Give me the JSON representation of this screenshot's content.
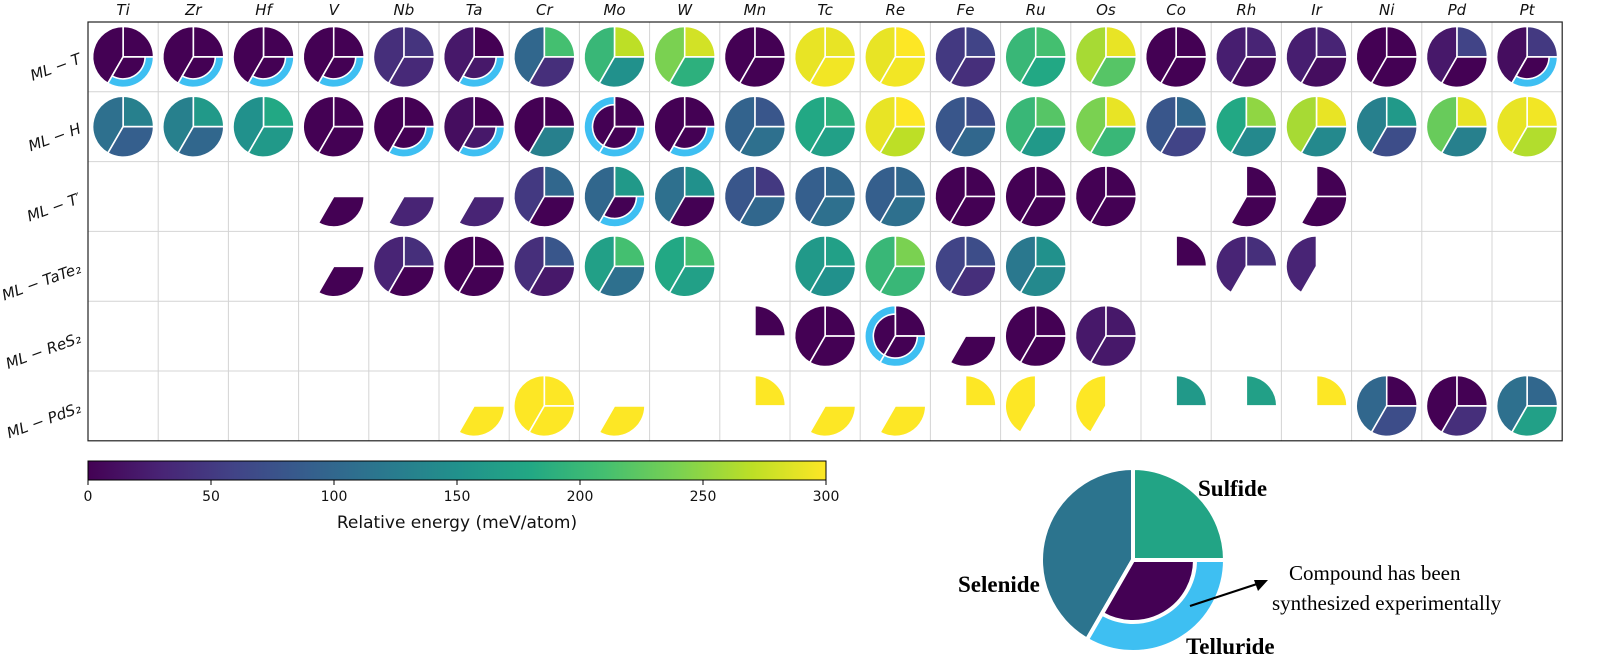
{
  "chart_data": {
    "type": "heatmap",
    "description_colorbar": {
      "label": "Relative energy (meV/atom)",
      "range": [
        0,
        300
      ],
      "ticks": [
        0,
        50,
        100,
        150,
        200,
        250,
        300
      ],
      "colormap": "viridis"
    },
    "columns": [
      "Ti",
      "Zr",
      "Hf",
      "V",
      "Nb",
      "Ta",
      "Cr",
      "Mo",
      "W",
      "Mn",
      "Tc",
      "Re",
      "Fe",
      "Ru",
      "Os",
      "Co",
      "Rh",
      "Ir",
      "Ni",
      "Pd",
      "Pt"
    ],
    "rows": [
      {
        "label": "ML − T",
        "cells": [
          {
            "S": 0,
            "Se": 0,
            "Te": 0,
            "syn": [
              "Te"
            ]
          },
          {
            "S": 0,
            "Se": 0,
            "Te": 0,
            "syn": [
              "Te"
            ]
          },
          {
            "S": 0,
            "Se": 0,
            "Te": 0,
            "syn": [
              "Te"
            ]
          },
          {
            "S": 0,
            "Se": 0,
            "Te": 0,
            "syn": [
              "Te"
            ]
          },
          {
            "S": 45,
            "Se": 40,
            "Te": 35,
            "syn": []
          },
          {
            "S": 0,
            "Se": 20,
            "Te": 20,
            "syn": [
              "Te"
            ]
          },
          {
            "S": 210,
            "Se": 100,
            "Te": 40,
            "syn": []
          },
          {
            "S": 270,
            "Se": 200,
            "Te": 150,
            "syn": []
          },
          {
            "S": 280,
            "Se": 240,
            "Te": 190,
            "syn": []
          },
          {
            "S": 0,
            "Se": 0,
            "Te": 0,
            "syn": []
          },
          {
            "S": 290,
            "Se": 290,
            "Te": 295,
            "syn": []
          },
          {
            "S": 300,
            "Se": 290,
            "Te": 295,
            "syn": []
          },
          {
            "S": 60,
            "Se": 50,
            "Te": 40,
            "syn": []
          },
          {
            "S": 210,
            "Se": 200,
            "Te": 180,
            "syn": []
          },
          {
            "S": 290,
            "Se": 260,
            "Te": 220,
            "syn": []
          },
          {
            "S": 0,
            "Se": 0,
            "Te": 0,
            "syn": []
          },
          {
            "S": 30,
            "Se": 25,
            "Te": 10,
            "syn": []
          },
          {
            "S": 30,
            "Se": 25,
            "Te": 10,
            "syn": []
          },
          {
            "S": 0,
            "Se": 0,
            "Te": 0,
            "syn": []
          },
          {
            "S": 60,
            "Se": 20,
            "Te": 0,
            "syn": []
          },
          {
            "S": 50,
            "Se": 10,
            "Te": 0,
            "syn": [
              "Te"
            ]
          }
        ]
      },
      {
        "label": "ML − H",
        "cells": [
          {
            "S": 130,
            "Se": 110,
            "Te": 90,
            "syn": []
          },
          {
            "S": 160,
            "Se": 130,
            "Te": 100,
            "syn": []
          },
          {
            "S": 180,
            "Se": 150,
            "Te": 160,
            "syn": []
          },
          {
            "S": 0,
            "Se": 0,
            "Te": 0,
            "syn": []
          },
          {
            "S": 0,
            "Se": 0,
            "Te": 0,
            "syn": [
              "Te"
            ]
          },
          {
            "S": 0,
            "Se": 10,
            "Te": 20,
            "syn": [
              "Te"
            ]
          },
          {
            "S": 0,
            "Se": 0,
            "Te": 130,
            "syn": []
          },
          {
            "S": 0,
            "Se": 0,
            "Te": 0,
            "syn": [
              "Se",
              "Te"
            ]
          },
          {
            "S": 0,
            "Se": 0,
            "Te": 0,
            "syn": [
              "Te"
            ]
          },
          {
            "S": 80,
            "Se": 95,
            "Te": 110,
            "syn": []
          },
          {
            "S": 190,
            "Se": 180,
            "Te": 170,
            "syn": []
          },
          {
            "S": 300,
            "Se": 290,
            "Te": 270,
            "syn": []
          },
          {
            "S": 70,
            "Se": 80,
            "Te": 100,
            "syn": []
          },
          {
            "S": 220,
            "Se": 200,
            "Te": 160,
            "syn": []
          },
          {
            "S": 290,
            "Se": 240,
            "Te": 200,
            "syn": []
          },
          {
            "S": 100,
            "Se": 80,
            "Te": 60,
            "syn": []
          },
          {
            "S": 250,
            "Se": 180,
            "Te": 140,
            "syn": []
          },
          {
            "S": 290,
            "Se": 260,
            "Te": 140,
            "syn": []
          },
          {
            "S": 160,
            "Se": 130,
            "Te": 70,
            "syn": []
          },
          {
            "S": 290,
            "Se": 230,
            "Te": 130,
            "syn": []
          },
          {
            "S": 295,
            "Se": 290,
            "Te": 265,
            "syn": []
          }
        ]
      },
      {
        "label": "ML − T′",
        "cells": [
          null,
          null,
          null,
          {
            "Te": 0,
            "syn": []
          },
          {
            "Te": 30,
            "syn": []
          },
          {
            "Te": 30,
            "syn": []
          },
          {
            "S": 100,
            "Se": 50,
            "Te": 0,
            "syn": []
          },
          {
            "S": 160,
            "Se": 100,
            "Te": 0,
            "syn": [
              "Te"
            ]
          },
          {
            "S": 150,
            "Se": 110,
            "Te": 0,
            "syn": []
          },
          {
            "S": 50,
            "Se": 80,
            "Te": 100,
            "syn": []
          },
          {
            "S": 100,
            "Se": 90,
            "Te": 110,
            "syn": []
          },
          {
            "S": 100,
            "Se": 90,
            "Te": 110,
            "syn": []
          },
          {
            "S": 0,
            "Se": 0,
            "Te": 0,
            "syn": []
          },
          {
            "S": 0,
            "Se": 0,
            "Te": 0,
            "syn": []
          },
          {
            "S": 0,
            "Se": 0,
            "Te": 0,
            "syn": []
          },
          null,
          {
            "S": 0,
            "Te": 0,
            "syn": []
          },
          {
            "S": 0,
            "Te": 0,
            "syn": []
          },
          null,
          null,
          null
        ]
      },
      {
        "label": "ML − TaTe₂",
        "cells": [
          null,
          null,
          null,
          {
            "Te": 0,
            "syn": []
          },
          {
            "S": 40,
            "Se": 30,
            "Te": 0,
            "syn": []
          },
          {
            "S": 0,
            "Se": 0,
            "Te": 0,
            "syn": []
          },
          {
            "S": 80,
            "Se": 40,
            "Te": 20,
            "syn": []
          },
          {
            "S": 210,
            "Se": 170,
            "Te": 110,
            "syn": []
          },
          {
            "S": 210,
            "Se": 180,
            "Te": 170,
            "syn": []
          },
          null,
          {
            "S": 170,
            "Se": 160,
            "Te": 150,
            "syn": []
          },
          {
            "S": 240,
            "Se": 200,
            "Te": 200,
            "syn": []
          },
          {
            "S": 70,
            "Se": 60,
            "Te": 40,
            "syn": []
          },
          {
            "S": 150,
            "Se": 120,
            "Te": 140,
            "syn": []
          },
          null,
          {
            "S": 0,
            "syn": []
          },
          {
            "S": 40,
            "Se": 30,
            "syn": []
          },
          {
            "Se": 30,
            "syn": []
          },
          null,
          null,
          null
        ]
      },
      {
        "label": "ML − ReS₂",
        "cells": [
          null,
          null,
          null,
          null,
          null,
          null,
          null,
          null,
          null,
          {
            "S": 0,
            "syn": []
          },
          {
            "S": 0,
            "Se": 0,
            "Te": 0,
            "syn": []
          },
          {
            "S": 0,
            "Se": 0,
            "Te": 0,
            "syn": [
              "Se",
              "Te"
            ]
          },
          {
            "Te": 0,
            "syn": []
          },
          {
            "S": 0,
            "Se": 0,
            "Te": 0,
            "syn": []
          },
          {
            "S": 20,
            "Se": 20,
            "Te": 20,
            "syn": []
          },
          null,
          null,
          null,
          null,
          null,
          null
        ]
      },
      {
        "label": "ML − PdS₂",
        "cells": [
          null,
          null,
          null,
          null,
          null,
          {
            "Te": 300,
            "syn": []
          },
          {
            "S": 300,
            "Se": 300,
            "Te": 300,
            "syn": []
          },
          {
            "Te": 300,
            "syn": []
          },
          null,
          {
            "S": 300,
            "syn": []
          },
          {
            "Te": 300,
            "syn": []
          },
          {
            "Te": 300,
            "syn": []
          },
          {
            "S": 300,
            "syn": []
          },
          {
            "Se": 300,
            "syn": []
          },
          {
            "Se": 300,
            "syn": []
          },
          {
            "S": 160,
            "syn": []
          },
          {
            "S": 170,
            "syn": []
          },
          {
            "S": 300,
            "syn": []
          },
          {
            "S": 0,
            "Se": 100,
            "Te": 70,
            "syn": []
          },
          {
            "S": 0,
            "Se": 0,
            "Te": 40,
            "syn": []
          },
          {
            "S": 100,
            "Se": 110,
            "Te": 170,
            "syn": []
          }
        ]
      }
    ],
    "legend": {
      "sulfide": "Sulfide",
      "selenide": "Selenide",
      "telluride": "Telluride",
      "note_line1": "Compound has been",
      "note_line2": "synthesized experimentally",
      "example": {
        "S": 175,
        "Se": 115,
        "Te": 0,
        "syn": [
          "Te"
        ]
      }
    },
    "colors": {
      "synthesized_ring": "#3EBFF2",
      "cbar_border": "#000000"
    }
  }
}
